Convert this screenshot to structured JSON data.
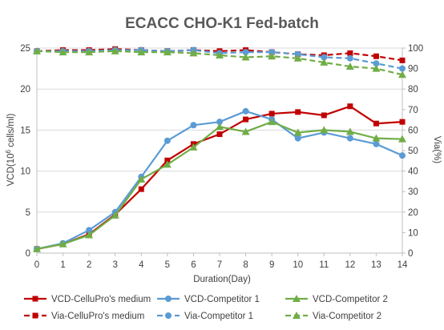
{
  "chart_data": {
    "type": "line",
    "title": "ECACC CHO-K1 Fed-batch",
    "xlabel": "Duration(Day)",
    "ylabel_left_main": "VCD(10",
    "ylabel_left_sup": "6",
    "ylabel_left_tail": " cells/ml)",
    "ylabel_right": "Via(%)",
    "x": [
      0,
      1,
      2,
      3,
      4,
      5,
      6,
      7,
      8,
      9,
      10,
      11,
      12,
      13,
      14
    ],
    "x_ticks": [
      "0",
      "1",
      "2",
      "3",
      "4",
      "5",
      "6",
      "7",
      "8",
      "9",
      "10",
      "11",
      "12",
      "13",
      "14"
    ],
    "ylim_left": [
      0,
      25
    ],
    "yticks_left": [
      "0",
      "5",
      "10",
      "15",
      "20",
      "25"
    ],
    "ylim_right": [
      0,
      100
    ],
    "yticks_right": [
      "0",
      "10",
      "20",
      "30",
      "40",
      "50",
      "60",
      "70",
      "80",
      "90",
      "100"
    ],
    "grid": "horizontal",
    "legend_position": "bottom",
    "series": [
      {
        "name": "VCD-CelluPro's medium",
        "axis": "left",
        "style": "solid",
        "marker": "square",
        "color": "#C00000",
        "values": [
          0.5,
          1.1,
          2.3,
          4.7,
          7.8,
          11.3,
          13.3,
          14.5,
          16.3,
          17.0,
          17.2,
          16.8,
          17.9,
          15.8,
          16.0
        ]
      },
      {
        "name": "VCD-Competitor 1",
        "axis": "left",
        "style": "solid",
        "marker": "circle",
        "color": "#5B9BD5",
        "values": [
          0.5,
          1.2,
          2.8,
          5.0,
          9.3,
          13.7,
          15.6,
          16.0,
          17.3,
          16.3,
          14.0,
          14.7,
          14.0,
          13.3,
          11.9
        ]
      },
      {
        "name": "VCD-Competitor 2",
        "axis": "left",
        "style": "solid",
        "marker": "triangle",
        "color": "#70AD47",
        "values": [
          0.5,
          1.1,
          2.2,
          4.6,
          9.0,
          10.8,
          12.9,
          15.4,
          14.8,
          16.0,
          14.7,
          15.0,
          14.8,
          14.0,
          13.9
        ]
      },
      {
        "name": "Via-CelluPro's medium",
        "axis": "right",
        "style": "dashed",
        "marker": "square",
        "color": "#C00000",
        "values": [
          98.5,
          99.0,
          99.0,
          99.5,
          99.0,
          98.5,
          99.0,
          98.5,
          99.0,
          98.0,
          97.0,
          96.5,
          97.5,
          96.0,
          94.0
        ]
      },
      {
        "name": "Via-Competitor 1",
        "axis": "right",
        "style": "dashed",
        "marker": "circle",
        "color": "#5B9BD5",
        "values": [
          98.5,
          98.5,
          98.5,
          99.0,
          99.0,
          98.5,
          99.0,
          97.5,
          98.0,
          98.0,
          97.0,
          95.5,
          95.0,
          92.5,
          90.0
        ]
      },
      {
        "name": "Via-Competitor 2",
        "axis": "right",
        "style": "dashed",
        "marker": "triangle",
        "color": "#70AD47",
        "values": [
          98.5,
          98.0,
          98.0,
          98.5,
          98.0,
          98.0,
          97.5,
          96.5,
          95.5,
          96.0,
          95.0,
          93.0,
          91.0,
          90.0,
          87.0
        ]
      }
    ]
  }
}
